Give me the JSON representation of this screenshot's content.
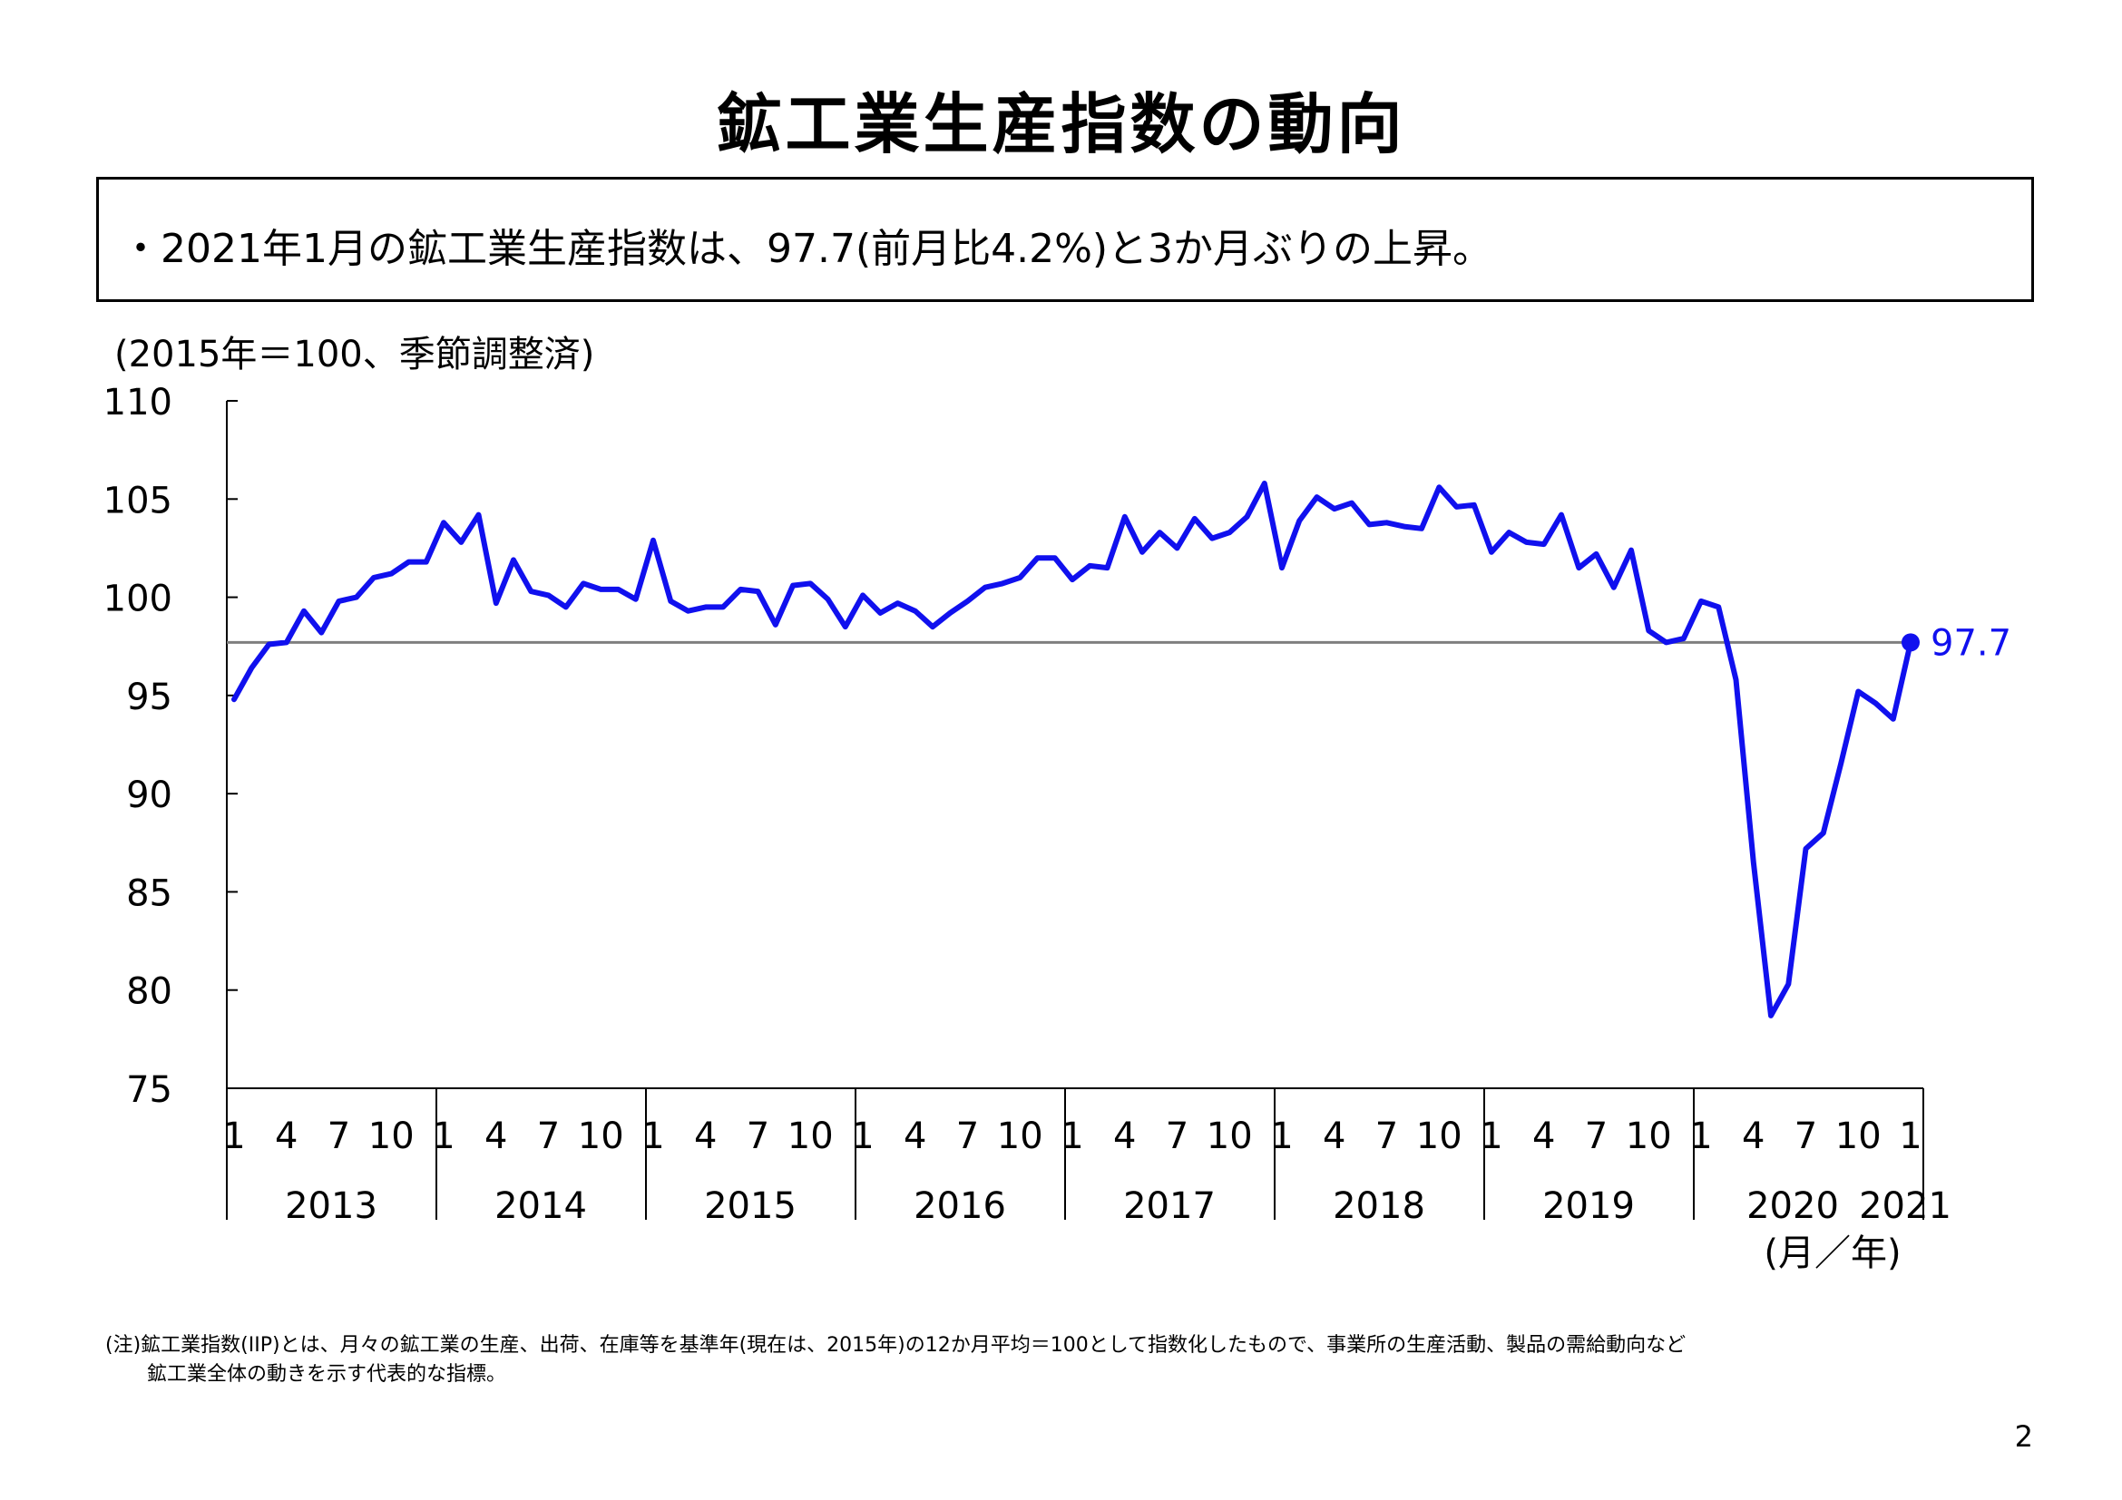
{
  "page": {
    "title": "鉱工業生産指数の動向",
    "summary": "・2021年1月の鉱工業生産指数は、97.7(前月比4.2%)と3か月ぶりの上昇。",
    "unit_note": "(2015年＝100、季節調整済)",
    "x_unit_note": "(月／年)",
    "footnote_line1": "(注)鉱工業指数(IIP)とは、月々の鉱工業の生産、出荷、在庫等を基準年(現在は、2015年)の12か月平均＝100として指数化したもので、事業所の生産活動、製品の需給動向など",
    "footnote_line2": "鉱工業全体の動きを示す代表的な指標。",
    "page_number": "2"
  },
  "chart_data": {
    "type": "line",
    "title": "",
    "xlabel": "(月／年)",
    "ylabel": "(2015年＝100、季節調整済)",
    "ylim": [
      75,
      110
    ],
    "yticks": [
      "75",
      "80",
      "85",
      "90",
      "95",
      "100",
      "105",
      "110"
    ],
    "month_tick_labels": [
      "1",
      "4",
      "7",
      "10"
    ],
    "years": [
      "2013",
      "2014",
      "2015",
      "2016",
      "2017",
      "2018",
      "2019",
      "2020",
      "2021"
    ],
    "x_start": "2013-01",
    "x_end": "2021-01",
    "reference_line": 97.7,
    "end_label": "97.7",
    "colors": {
      "series": "#1010ee",
      "reference_line": "#7f7f7f",
      "axis": "#000000"
    },
    "series": [
      {
        "values": [
          94.8,
          96.4,
          97.6,
          97.7,
          99.3,
          98.2,
          99.8,
          100.0,
          101.0,
          101.2,
          101.8,
          101.8,
          103.8,
          102.8,
          104.2,
          99.7,
          101.9,
          100.3,
          100.1,
          99.5,
          100.7,
          100.4,
          100.4,
          99.9,
          102.9,
          99.8,
          99.3,
          99.5,
          99.5,
          100.4,
          100.3,
          98.6,
          100.6,
          100.7,
          99.9,
          98.5,
          100.1,
          99.2,
          99.7,
          99.3,
          98.5,
          99.2,
          99.8,
          100.5,
          100.7,
          101.0,
          102.0,
          102.0,
          100.9,
          101.6,
          101.5,
          104.1,
          102.3,
          103.3,
          102.5,
          104.0,
          103.0,
          103.3,
          104.1,
          105.8,
          101.5,
          103.9,
          105.1,
          104.5,
          104.8,
          103.7,
          103.8,
          103.6,
          103.5,
          105.6,
          104.6,
          104.7,
          102.3,
          103.3,
          102.8,
          102.7,
          104.2,
          101.5,
          102.2,
          100.5,
          102.4,
          98.3,
          97.7,
          97.9,
          99.8,
          99.5,
          95.8,
          86.5,
          78.7,
          80.3,
          87.2,
          88.0,
          91.5,
          95.2,
          94.6,
          93.8,
          97.7
        ]
      }
    ]
  }
}
